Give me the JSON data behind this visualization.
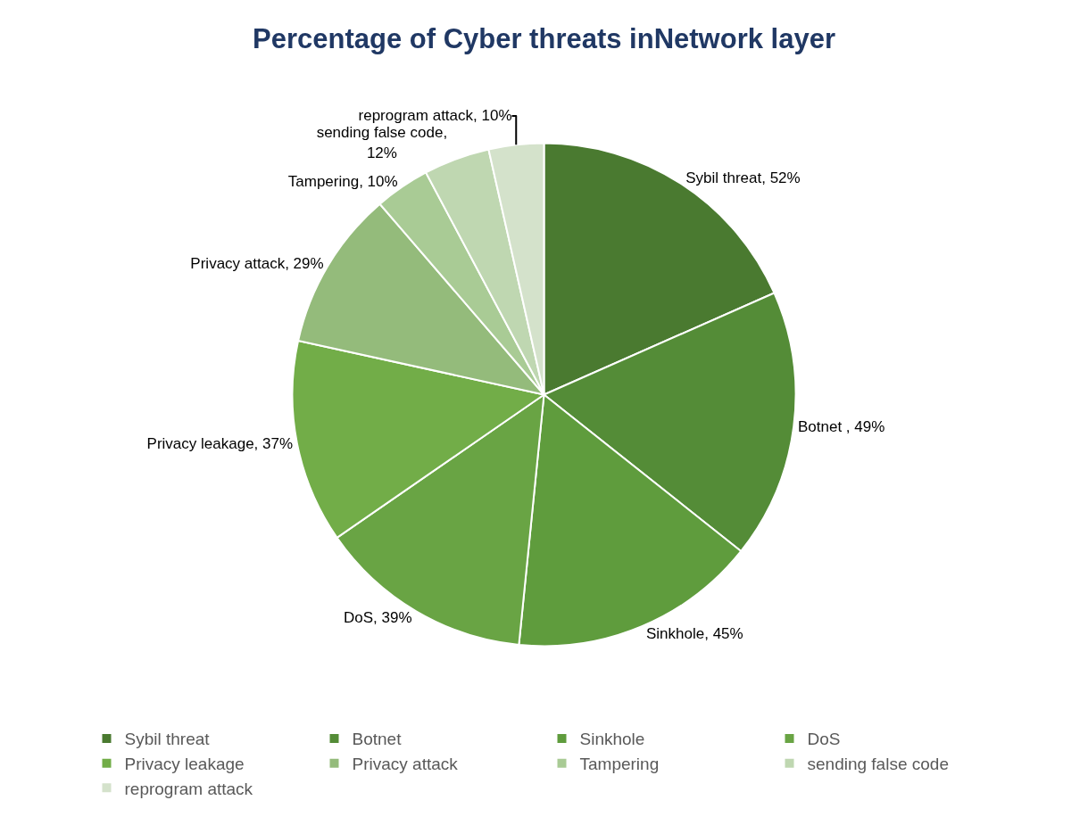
{
  "chart_data": {
    "type": "pie",
    "title": "Percentage of Cyber threats inNetwork layer",
    "categories": [
      "Sybil threat",
      "Botnet",
      "Sinkhole",
      "DoS",
      "Privacy leakage",
      "Privacy attack",
      "Tampering",
      "sending false code",
      "reprogram attack"
    ],
    "values": [
      52,
      49,
      45,
      39,
      37,
      29,
      10,
      12,
      10
    ],
    "value_labels": [
      "Sybil threat, 52%",
      "Botnet , 49%",
      "Sinkhole, 45%",
      "DoS, 39%",
      "Privacy leakage, 37%",
      "Privacy attack, 29%",
      "Tampering, 10%",
      "sending false code,\n12%",
      "reprogram attack, 10%"
    ],
    "colors": [
      "#4a7a30",
      "#548c37",
      "#5f9c3d",
      "#69a444",
      "#72ad48",
      "#94bb7b",
      "#a9cb95",
      "#bfd7b1",
      "#d4e2cb"
    ],
    "legend": "bottom"
  }
}
